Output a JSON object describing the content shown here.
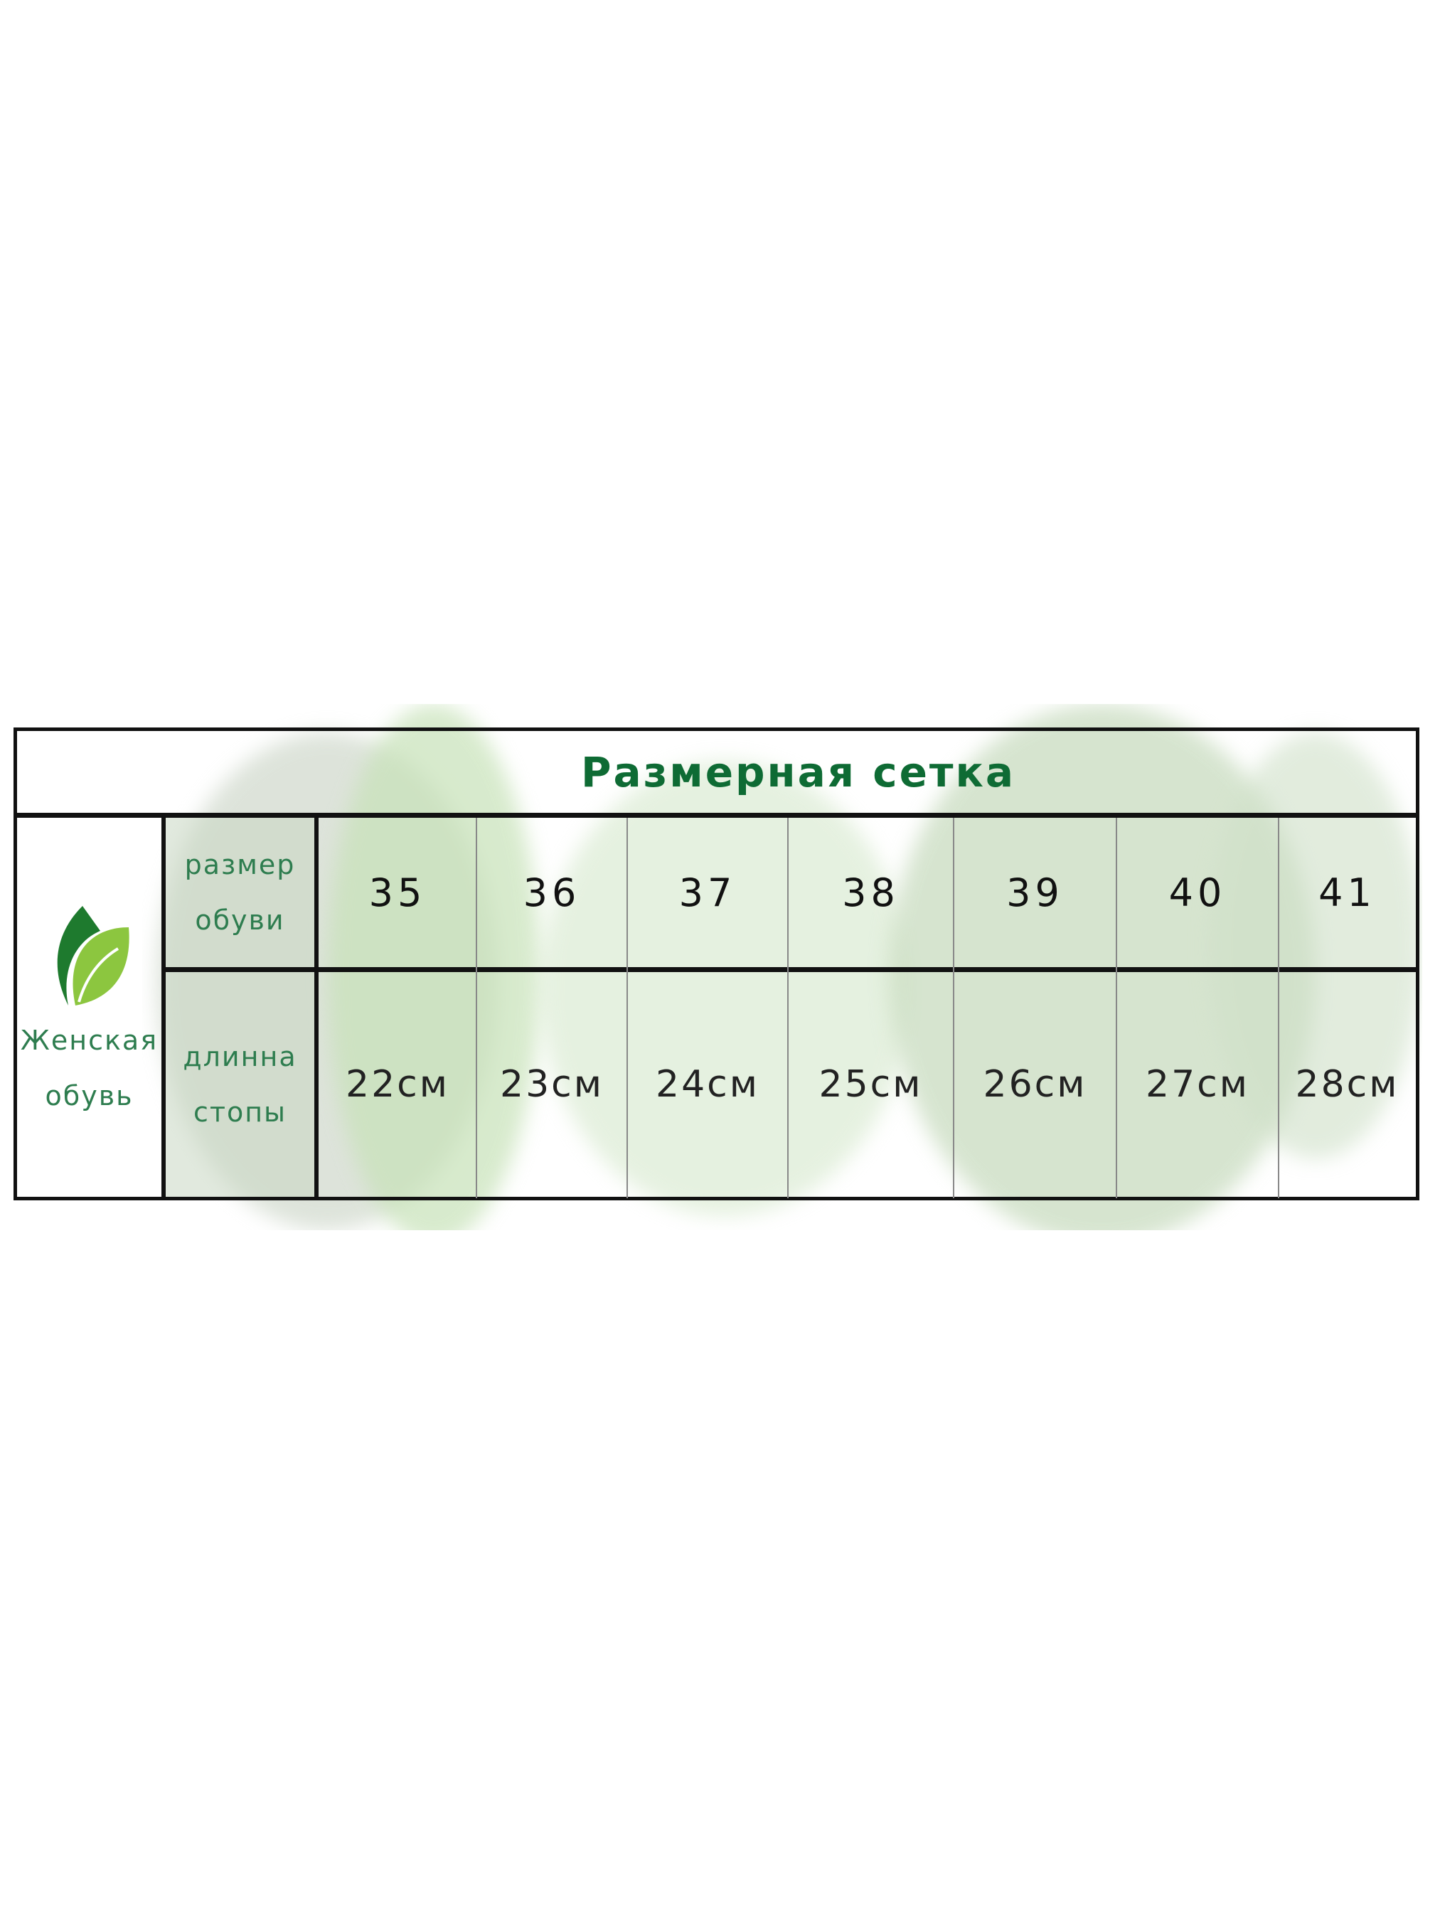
{
  "title": "Размерная сетка",
  "side_label": {
    "line1": "Женская",
    "line2": "обувь"
  },
  "row_labels": [
    {
      "line1": "размер",
      "line2": "обуви"
    },
    {
      "line1": "длинна",
      "line2": "стопы"
    }
  ],
  "sizes": [
    "35",
    "36",
    "37",
    "38",
    "39",
    "40",
    "41"
  ],
  "lengths": [
    "22см",
    "23см",
    "24см",
    "25см",
    "26см",
    "27см",
    "28см"
  ],
  "colors": {
    "title": "#0e6b34",
    "label": "#2e7d4f",
    "leaf_dark": "#1e7a2e",
    "leaf_light": "#8cc63f",
    "border": "#111111"
  },
  "icons": {
    "logo": "leaf-icon"
  }
}
